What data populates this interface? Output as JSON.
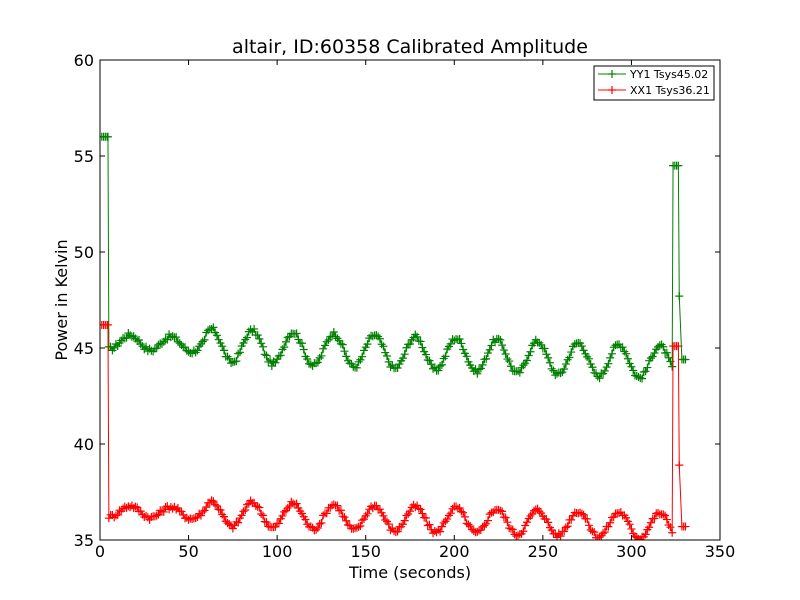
{
  "chart_data": {
    "type": "line",
    "title": "altair, ID:60358 Calibrated Amplitude",
    "xlabel": "Time (seconds)",
    "ylabel": "Power in Kelvin",
    "xlim": [
      0,
      350
    ],
    "ylim": [
      35,
      60
    ],
    "x_ticks": [
      0,
      50,
      100,
      150,
      200,
      250,
      300,
      350
    ],
    "y_ticks": [
      35,
      40,
      45,
      50,
      55,
      60
    ],
    "grid": false,
    "legend_position": "top-right",
    "marker": "+",
    "series": [
      {
        "name": "YY1 Tsys45.02",
        "color": "#008000",
        "flat_start": 5,
        "flat_end": 323,
        "baseline": 45.0,
        "amplitude": 0.85,
        "period": 23,
        "trend_start": 46.0,
        "trend_end": 44.9,
        "spike_points": [
          [
            1,
            56.0
          ],
          [
            2,
            56.0
          ],
          [
            3,
            56.0
          ],
          [
            4,
            56.0
          ],
          [
            4.5,
            56.0
          ],
          [
            323.5,
            54.5
          ],
          [
            324.5,
            54.5
          ],
          [
            325.5,
            54.5
          ],
          [
            326.5,
            54.5
          ],
          [
            327,
            47.7
          ],
          [
            328.5,
            44.4
          ],
          [
            329.5,
            44.4
          ],
          [
            330.5,
            44.4
          ]
        ]
      },
      {
        "name": "XX1 Tsys36.21",
        "color": "#ff0000",
        "flat_start": 5,
        "flat_end": 323,
        "baseline": 36.3,
        "amplitude": 0.65,
        "period": 23,
        "trend_start": 37.0,
        "trend_end": 36.2,
        "spike_points": [
          [
            1,
            46.2
          ],
          [
            2,
            46.2
          ],
          [
            3,
            46.2
          ],
          [
            4,
            46.2
          ],
          [
            4.5,
            46.2
          ],
          [
            323.5,
            45.1
          ],
          [
            324.5,
            45.1
          ],
          [
            325.5,
            45.1
          ],
          [
            326.5,
            45.1
          ],
          [
            327,
            38.9
          ],
          [
            328.5,
            35.7
          ],
          [
            329.5,
            35.7
          ],
          [
            330.5,
            35.7
          ]
        ]
      }
    ]
  }
}
